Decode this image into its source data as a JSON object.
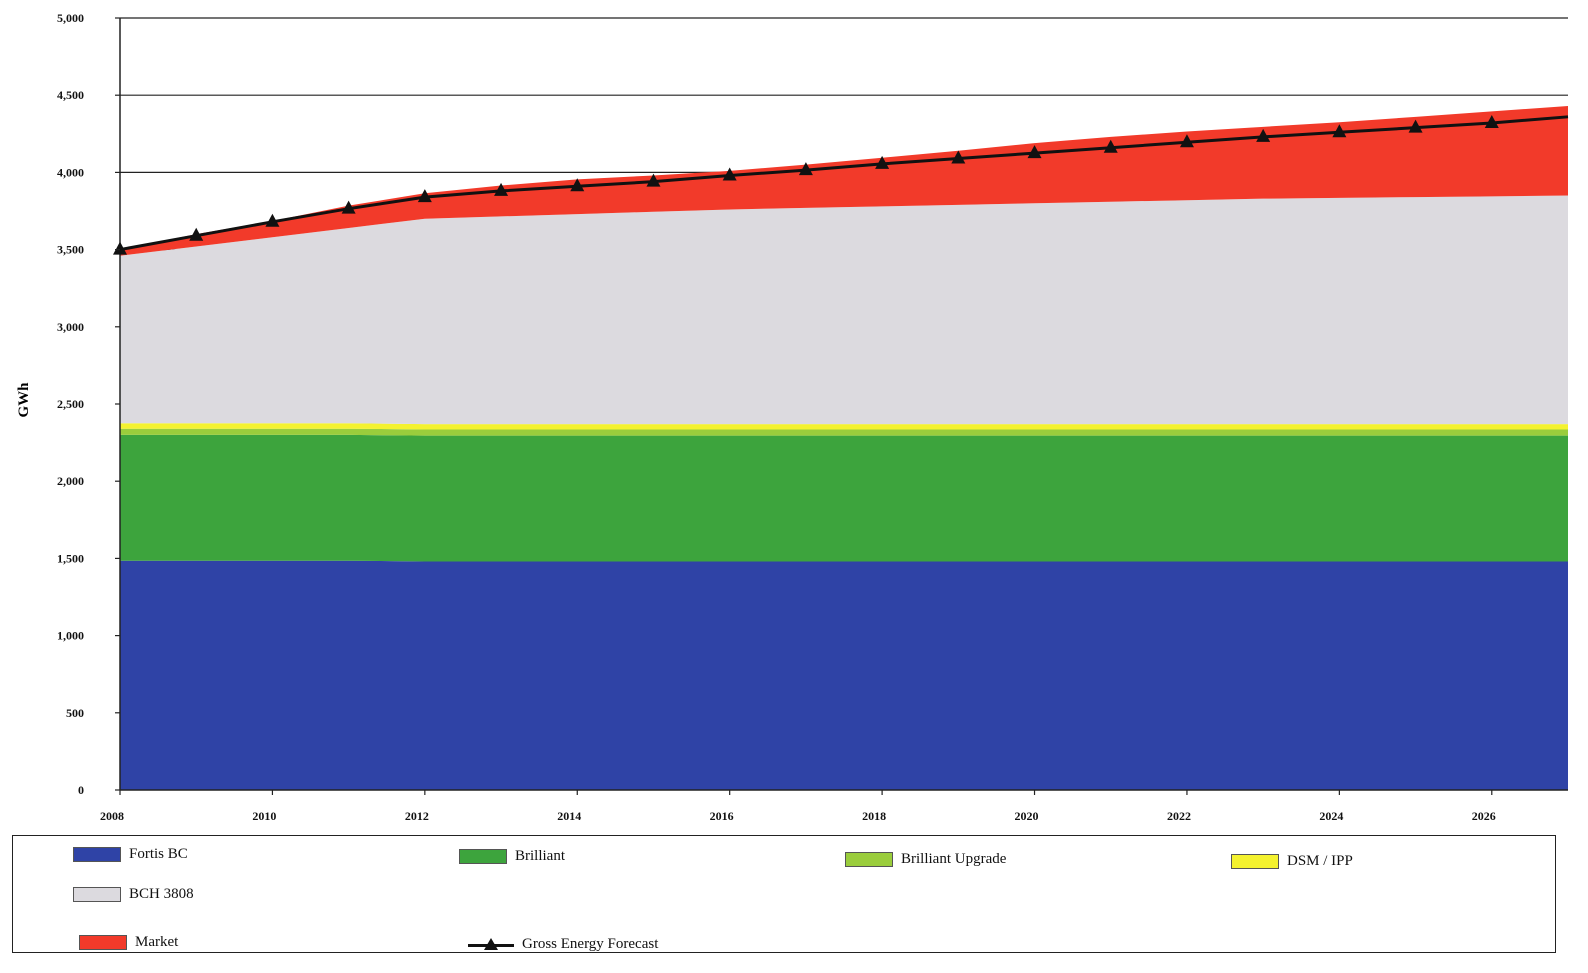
{
  "chart_data": {
    "type": "area",
    "title": "",
    "xlabel": "",
    "ylabel": "GWh",
    "xlim": [
      2008,
      2027
    ],
    "ylim": [
      0,
      5000
    ],
    "y_ticks": [
      0,
      500,
      1000,
      1500,
      2000,
      2500,
      3000,
      3500,
      4000,
      4500,
      5000
    ],
    "y_tick_labels": [
      "0",
      "500",
      "1,000",
      "1,500",
      "2,000",
      "2,500",
      "3,000",
      "3,500",
      "4,000",
      "4,500",
      "5,000"
    ],
    "x_ticks": [
      2008,
      2010,
      2012,
      2014,
      2016,
      2018,
      2020,
      2022,
      2024,
      2026
    ],
    "x_tick_labels": [
      "2008",
      "2010",
      "2012",
      "2014",
      "2016",
      "2018",
      "2020",
      "2022",
      "2024",
      "2026"
    ],
    "grid": "horizontal",
    "legend_position": "bottom",
    "stacked": true,
    "x": [
      2008,
      2009,
      2010,
      2011,
      2012,
      2013,
      2014,
      2015,
      2016,
      2017,
      2018,
      2019,
      2020,
      2021,
      2022,
      2023,
      2024,
      2025,
      2026,
      2027
    ],
    "series": [
      {
        "name": "Fortis BC",
        "color": "#2f43a6",
        "values": [
          1485,
          1485,
          1485,
          1485,
          1480,
          1480,
          1480,
          1480,
          1480,
          1480,
          1480,
          1480,
          1480,
          1480,
          1480,
          1480,
          1480,
          1480,
          1480,
          1480
        ]
      },
      {
        "name": "Brilliant",
        "color": "#3da43d",
        "values": [
          815,
          815,
          815,
          815,
          815,
          815,
          815,
          815,
          815,
          815,
          815,
          815,
          815,
          815,
          815,
          815,
          815,
          815,
          815,
          815
        ]
      },
      {
        "name": "Brilliant Upgrade",
        "color": "#9acd3c",
        "values": [
          40,
          40,
          40,
          40,
          40,
          40,
          40,
          40,
          40,
          40,
          40,
          40,
          40,
          40,
          40,
          40,
          40,
          40,
          40,
          40
        ]
      },
      {
        "name": "DSM / IPP",
        "color": "#f4f22f",
        "values": [
          35,
          35,
          35,
          35,
          35,
          35,
          35,
          35,
          35,
          35,
          35,
          35,
          35,
          35,
          35,
          35,
          35,
          35,
          35,
          35
        ]
      },
      {
        "name": "BCH 3808",
        "color": "#dcdadf",
        "values": [
          1085,
          1145,
          1205,
          1265,
          1330,
          1345,
          1360,
          1375,
          1390,
          1400,
          1410,
          1420,
          1430,
          1440,
          1450,
          1460,
          1465,
          1470,
          1475,
          1480
        ]
      },
      {
        "name": "Market",
        "color": "#f23a2a",
        "values": [
          40,
          80,
          105,
          145,
          165,
          200,
          225,
          235,
          250,
          280,
          315,
          350,
          390,
          420,
          445,
          465,
          490,
          520,
          550,
          580
        ]
      }
    ],
    "line_series": {
      "name": "Gross Energy Forecast",
      "color": "#111111",
      "marker": "triangle",
      "values": [
        3500,
        3590,
        3680,
        3765,
        3840,
        3880,
        3910,
        3940,
        3980,
        4015,
        4055,
        4090,
        4125,
        4160,
        4195,
        4230,
        4260,
        4290,
        4320,
        4360
      ]
    }
  },
  "legend": {
    "items": [
      {
        "label": "Fortis BC",
        "color": "#2f43a6"
      },
      {
        "label": "Brilliant",
        "color": "#3da43d"
      },
      {
        "label": "Brilliant Upgrade",
        "color": "#9acd3c"
      },
      {
        "label": "DSM / IPP",
        "color": "#f4f22f"
      },
      {
        "label": "BCH 3808",
        "color": "#dcdadf"
      },
      {
        "label": "Market",
        "color": "#f23a2a"
      },
      {
        "label": "Gross Energy Forecast",
        "color": "#111111"
      }
    ]
  }
}
